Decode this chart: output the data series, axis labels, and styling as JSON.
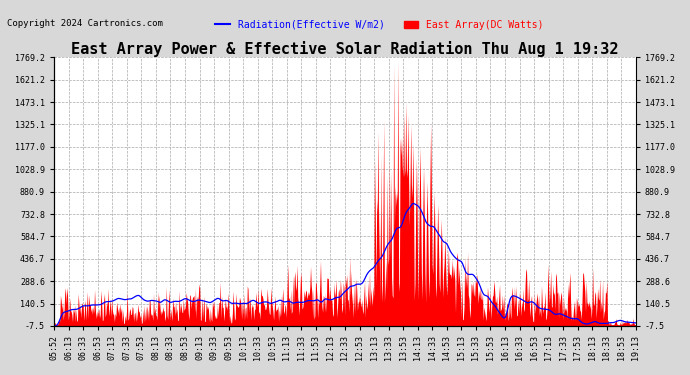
{
  "title": "East Array Power & Effective Solar Radiation Thu Aug 1 19:32",
  "copyright": "Copyright 2024 Cartronics.com",
  "legend_radiation": "Radiation(Effective W/m2)",
  "legend_array": "East Array(DC Watts)",
  "radiation_color": "blue",
  "array_color": "red",
  "background_color": "#d8d8d8",
  "plot_background": "#ffffff",
  "yticks": [
    -7.5,
    140.5,
    288.6,
    436.7,
    584.7,
    732.8,
    880.9,
    1028.9,
    1177.0,
    1325.1,
    1473.1,
    1621.2,
    1769.2
  ],
  "ymin": -7.5,
  "ymax": 1769.2,
  "xtick_labels": [
    "05:52",
    "06:13",
    "06:33",
    "06:53",
    "07:13",
    "07:33",
    "07:53",
    "08:13",
    "08:33",
    "08:53",
    "09:13",
    "09:33",
    "09:53",
    "10:13",
    "10:33",
    "10:53",
    "11:13",
    "11:33",
    "11:53",
    "12:13",
    "12:33",
    "12:53",
    "13:13",
    "13:33",
    "13:53",
    "14:13",
    "14:33",
    "14:53",
    "15:13",
    "15:33",
    "15:53",
    "16:13",
    "16:33",
    "16:53",
    "17:13",
    "17:33",
    "17:53",
    "18:13",
    "18:33",
    "18:53",
    "19:13"
  ],
  "grid_color": "#aaaaaa",
  "grid_style": "--",
  "title_fontsize": 11,
  "label_fontsize": 7,
  "tick_fontsize": 6,
  "copyright_fontsize": 6.5
}
